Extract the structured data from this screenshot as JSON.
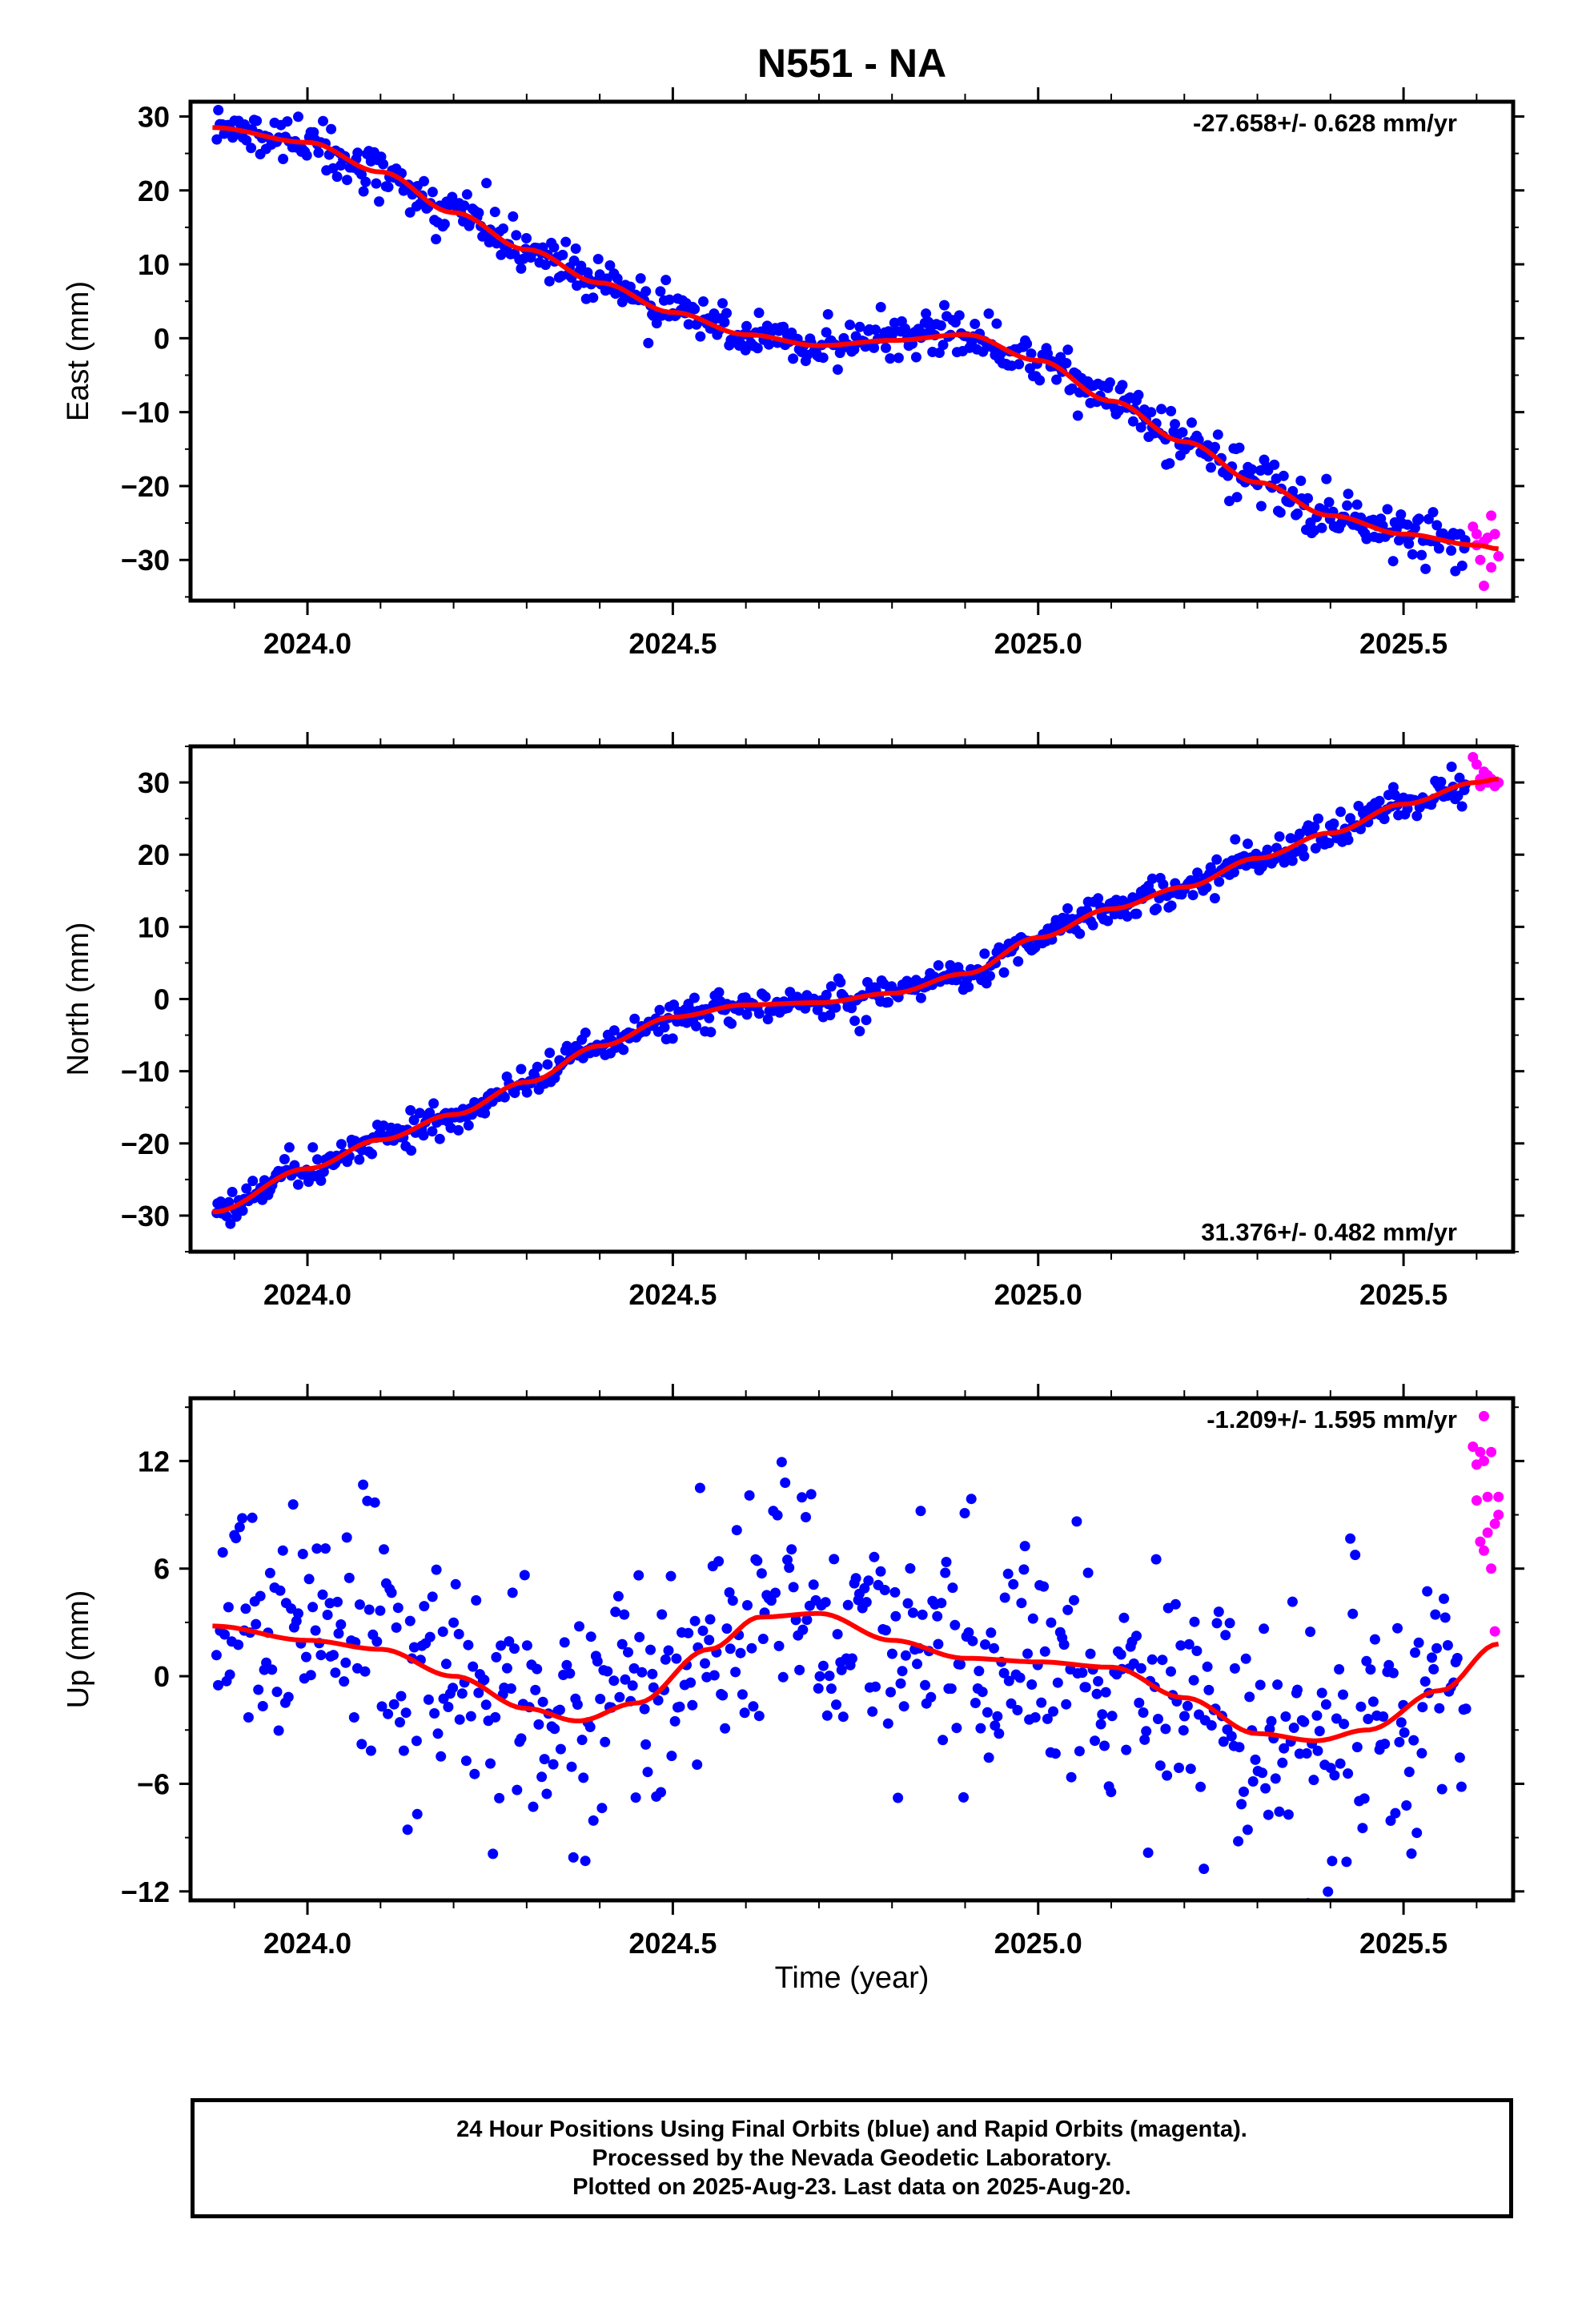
{
  "title": "N551 - NA",
  "xlabel": "Time (year)",
  "x_ticks": [
    "2024.0",
    "2024.5",
    "2025.0",
    "2025.5"
  ],
  "colors": {
    "final": "#0000ff",
    "rapid": "#ff00ff",
    "fit": "#ff0000"
  },
  "caption": [
    "24 Hour Positions Using Final Orbits (blue) and Rapid Orbits (magenta).",
    "Processed by the Nevada Geodetic Laboratory.",
    "Plotted on 2025-Aug-23. Last data on 2025-Aug-20."
  ],
  "chart_data": [
    {
      "type": "scatter",
      "component": "east",
      "ylabel": "East (mm)",
      "rate_label": "-27.658+/- 0.628 mm/yr",
      "xlim": [
        2023.84,
        2025.65
      ],
      "ylim": [
        -35.5,
        32
      ],
      "y_ticks": [
        30,
        20,
        10,
        0,
        -10,
        -20,
        -30
      ],
      "x_first": 2023.875,
      "x_last_final": 2025.585,
      "fit_curve": {
        "x": [
          2023.87,
          2024.0,
          2024.1,
          2024.2,
          2024.3,
          2024.4,
          2024.5,
          2024.6,
          2024.7,
          2024.8,
          2024.9,
          2025.0,
          2025.1,
          2025.2,
          2025.3,
          2025.4,
          2025.5,
          2025.6,
          2025.63
        ],
        "y": [
          28.5,
          26.5,
          22.5,
          17.0,
          12.0,
          7.5,
          3.5,
          0.5,
          -1.0,
          -0.3,
          0.5,
          -3.0,
          -8.5,
          -14.0,
          -19.5,
          -24.0,
          -26.5,
          -28.0,
          -28.5
        ]
      },
      "noise": 1.8,
      "outlier_scale": 1.6,
      "rapid_points": {
        "x": [
          2025.595,
          2025.6,
          2025.605,
          2025.61,
          2025.615,
          2025.62,
          2025.625,
          2025.63,
          2025.6,
          2025.61,
          2025.62
        ],
        "y": [
          -25.5,
          -28.0,
          -30.0,
          -33.5,
          -27.0,
          -24.0,
          -26.5,
          -29.5,
          -26.5,
          -27.5,
          -31.0
        ]
      }
    },
    {
      "type": "scatter",
      "component": "north",
      "ylabel": "North (mm)",
      "rate_label": "31.376+/- 0.482 mm/yr",
      "xlim": [
        2023.84,
        2025.65
      ],
      "ylim": [
        -35,
        35
      ],
      "y_ticks": [
        30,
        20,
        10,
        0,
        -10,
        -20,
        -30
      ],
      "x_first": 2023.875,
      "x_last_final": 2025.585,
      "fit_curve": {
        "x": [
          2023.87,
          2024.0,
          2024.1,
          2024.2,
          2024.3,
          2024.4,
          2024.5,
          2024.6,
          2024.7,
          2024.8,
          2024.9,
          2025.0,
          2025.1,
          2025.2,
          2025.3,
          2025.4,
          2025.5,
          2025.6,
          2025.63
        ],
        "y": [
          -29.5,
          -23.5,
          -19.5,
          -16.0,
          -11.5,
          -6.5,
          -2.5,
          -0.8,
          -0.5,
          0.8,
          3.5,
          8.5,
          12.5,
          15.5,
          19.5,
          23.0,
          27.0,
          30.0,
          30.5
        ]
      },
      "noise": 1.3,
      "outlier_scale": 1.5,
      "rapid_points": {
        "x": [
          2025.595,
          2025.6,
          2025.605,
          2025.61,
          2025.615,
          2025.62,
          2025.625,
          2025.63,
          2025.605,
          2025.615
        ],
        "y": [
          33.5,
          32.5,
          30.5,
          31.5,
          30.0,
          30.5,
          29.5,
          30.0,
          29.5,
          31.0
        ]
      }
    },
    {
      "type": "scatter",
      "component": "up",
      "ylabel": "Up (mm)",
      "rate_label": "-1.209+/- 1.595 mm/yr",
      "xlim": [
        2023.84,
        2025.65
      ],
      "ylim": [
        -12.5,
        15.5
      ],
      "y_ticks": [
        12,
        6,
        0,
        -6,
        -12
      ],
      "x_first": 2023.875,
      "x_last_final": 2025.585,
      "fit_curve": {
        "x": [
          2023.87,
          2024.0,
          2024.1,
          2024.2,
          2024.3,
          2024.37,
          2024.45,
          2024.55,
          2024.62,
          2024.7,
          2024.8,
          2024.9,
          2025.0,
          2025.1,
          2025.2,
          2025.3,
          2025.38,
          2025.45,
          2025.55,
          2025.63
        ],
        "y": [
          2.8,
          2.0,
          1.5,
          0.0,
          -1.8,
          -2.5,
          -1.5,
          1.5,
          3.3,
          3.5,
          2.0,
          1.0,
          0.8,
          0.5,
          -1.2,
          -3.2,
          -3.6,
          -3.0,
          -0.8,
          1.8
        ]
      },
      "noise": 4.0,
      "outlier_scale": 1.0,
      "rapid_points": {
        "x": [
          2025.595,
          2025.6,
          2025.605,
          2025.61,
          2025.615,
          2025.62,
          2025.625,
          2025.63,
          2025.6,
          2025.61,
          2025.62,
          2025.63,
          2025.605,
          2025.615,
          2025.625,
          2025.61
        ],
        "y": [
          12.8,
          9.8,
          7.5,
          12.0,
          10.0,
          6.0,
          8.5,
          10.0,
          11.8,
          14.5,
          12.5,
          9.0,
          12.5,
          8.0,
          2.5,
          7.0
        ]
      }
    }
  ]
}
